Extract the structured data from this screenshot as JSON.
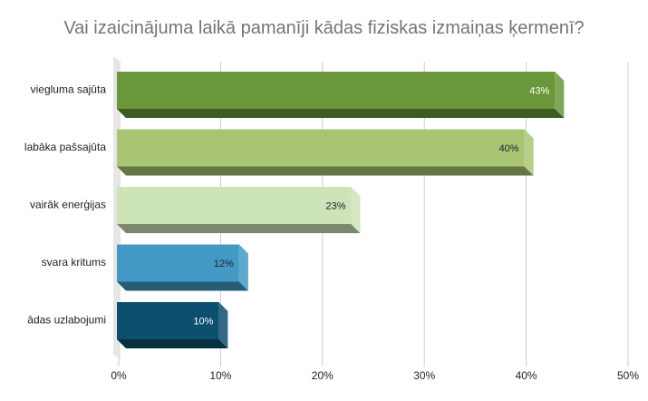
{
  "chart_data": {
    "type": "bar",
    "orientation": "horizontal",
    "style": "3d",
    "title": "Vai izaicinājuma laikā pamanīji kādas fiziskas izmaiņas ķermenī?",
    "categories": [
      "viegluma sajūta",
      "labāka pašsajūta",
      "vairāk enerģijas",
      "svara kritums",
      "ādas uzlabojumi"
    ],
    "values": [
      43,
      40,
      23,
      12,
      10
    ],
    "data_labels": [
      "43%",
      "40%",
      "23%",
      "12%",
      "10%"
    ],
    "colors": [
      "#69973a",
      "#a9c574",
      "#cde3b8",
      "#439ac4",
      "#0d4f6e"
    ],
    "label_colors": [
      "#ffffff",
      "#222222",
      "#222222",
      "#222222",
      "#ffffff"
    ],
    "x_ticks": [
      "0%",
      "10%",
      "20%",
      "30%",
      "40%",
      "50%"
    ],
    "xlim": [
      0,
      50
    ],
    "grid": true,
    "legend": "none"
  }
}
